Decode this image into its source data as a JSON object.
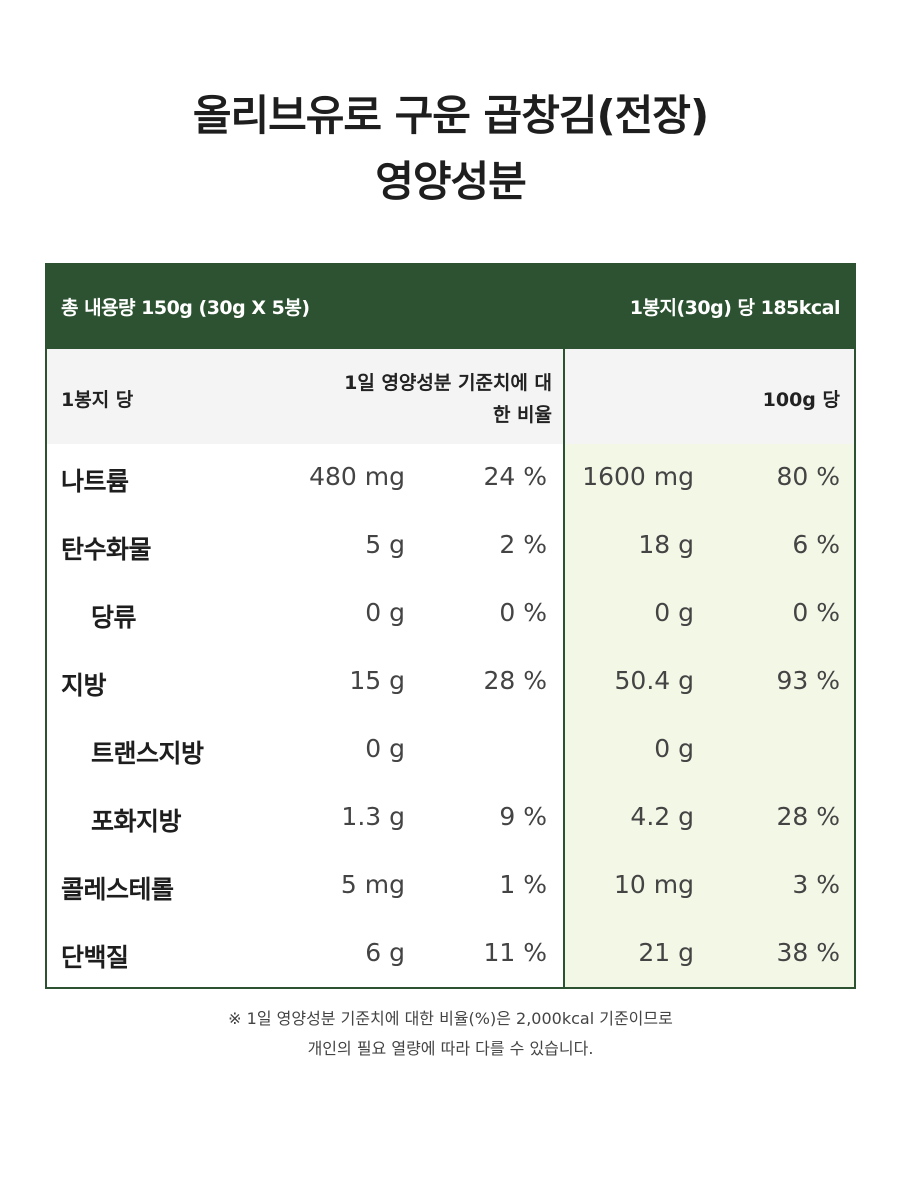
{
  "title": {
    "line1": "올리브유로 구운 곱창김(전장)",
    "line2": "영양성분"
  },
  "table": {
    "header_left": "총 내용량 150g (30g X 5봉)",
    "header_right": "1봉지(30g) 당 185kcal",
    "subhead_left": "1봉지 당",
    "subhead_mid_line1": "1일 영양성분 기준치에 대",
    "subhead_mid_line2": "한 비율",
    "subhead_right": "100g 당",
    "rows": [
      {
        "label": "나트륨",
        "per_pack": "480 mg",
        "per_pack_pct": "24 %",
        "per_100g": "1600 mg",
        "per_100g_pct": "80 %"
      },
      {
        "label": "탄수화물",
        "per_pack": "5 g",
        "per_pack_pct": "2 %",
        "per_100g": "18 g",
        "per_100g_pct": "6 %"
      },
      {
        "label": "당류",
        "per_pack": "0 g",
        "per_pack_pct": "0 %",
        "per_100g": "0 g",
        "per_100g_pct": "0 %"
      },
      {
        "label": "지방",
        "per_pack": "15 g",
        "per_pack_pct": "28 %",
        "per_100g": "50.4 g",
        "per_100g_pct": "93 %"
      },
      {
        "label": "트랜스지방",
        "per_pack": "0 g",
        "per_pack_pct": "",
        "per_100g": "0 g",
        "per_100g_pct": ""
      },
      {
        "label": "포화지방",
        "per_pack": "1.3 g",
        "per_pack_pct": "9 %",
        "per_100g": "4.2 g",
        "per_100g_pct": "28 %"
      },
      {
        "label": "콜레스테롤",
        "per_pack": "5 mg",
        "per_pack_pct": "1 %",
        "per_100g": "10 mg",
        "per_100g_pct": "3 %"
      },
      {
        "label": "단백질",
        "per_pack": "6 g",
        "per_pack_pct": "11 %",
        "per_100g": "21 g",
        "per_100g_pct": "38 %"
      }
    ]
  },
  "footnote": {
    "line1": "※ 1일 영양성분 기준치에 대한 비율(%)은 2,000kcal 기준이므로",
    "line2": "개인의 필요 열량에 따라 다를 수 있습니다."
  },
  "colors": {
    "header_green": "#2c5231",
    "panel_tint": "#f3f7e6",
    "subhead_gray": "#f4f4f4"
  }
}
